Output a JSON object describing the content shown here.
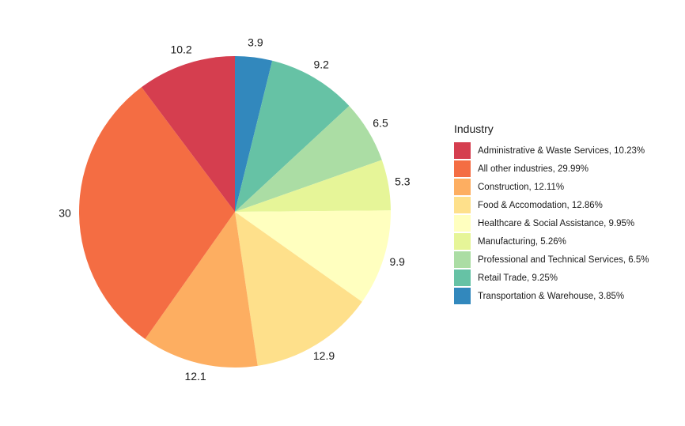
{
  "chart_data": {
    "type": "pie",
    "legend_title": "Industry",
    "legend_position": "right",
    "slices": [
      {
        "category": "Transportation & Warehouse",
        "value": 3.85,
        "label": "3.9",
        "legend": "Transportation & Warehouse, 3.85%",
        "color": "#3288bd"
      },
      {
        "category": "Retail Trade",
        "value": 9.25,
        "label": "9.2",
        "legend": "Retail Trade, 9.25%",
        "color": "#66c2a5"
      },
      {
        "category": "Professional and Technical Services",
        "value": 6.5,
        "label": "6.5",
        "legend": "Professional and Technical Services, 6.5%",
        "color": "#abdda4"
      },
      {
        "category": "Manufacturing",
        "value": 5.26,
        "label": "5.3",
        "legend": "Manufacturing, 5.26%",
        "color": "#e6f598"
      },
      {
        "category": "Healthcare & Social Assistance",
        "value": 9.95,
        "label": "9.9",
        "legend": "Healthcare & Social Assistance, 9.95%",
        "color": "#ffffbf"
      },
      {
        "category": "Food & Accomodation",
        "value": 12.86,
        "label": "12.9",
        "legend": "Food & Accomodation, 12.86%",
        "color": "#fee08b"
      },
      {
        "category": "Construction",
        "value": 12.11,
        "label": "12.1",
        "legend": "Construction, 12.11%",
        "color": "#fdae61"
      },
      {
        "category": "All other industries",
        "value": 29.99,
        "label": "30",
        "legend": "All other industries, 29.99%",
        "color": "#f46d43"
      },
      {
        "category": "Administrative & Waste Services",
        "value": 10.23,
        "label": "10.2",
        "legend": "Administrative & Waste Services, 10.23%",
        "color": "#d53e4f"
      }
    ],
    "legend_order": [
      "Administrative & Waste Services",
      "All other industries",
      "Construction",
      "Food & Accomodation",
      "Healthcare & Social Assistance",
      "Manufacturing",
      "Professional and Technical Services",
      "Retail Trade",
      "Transportation & Warehouse"
    ]
  }
}
